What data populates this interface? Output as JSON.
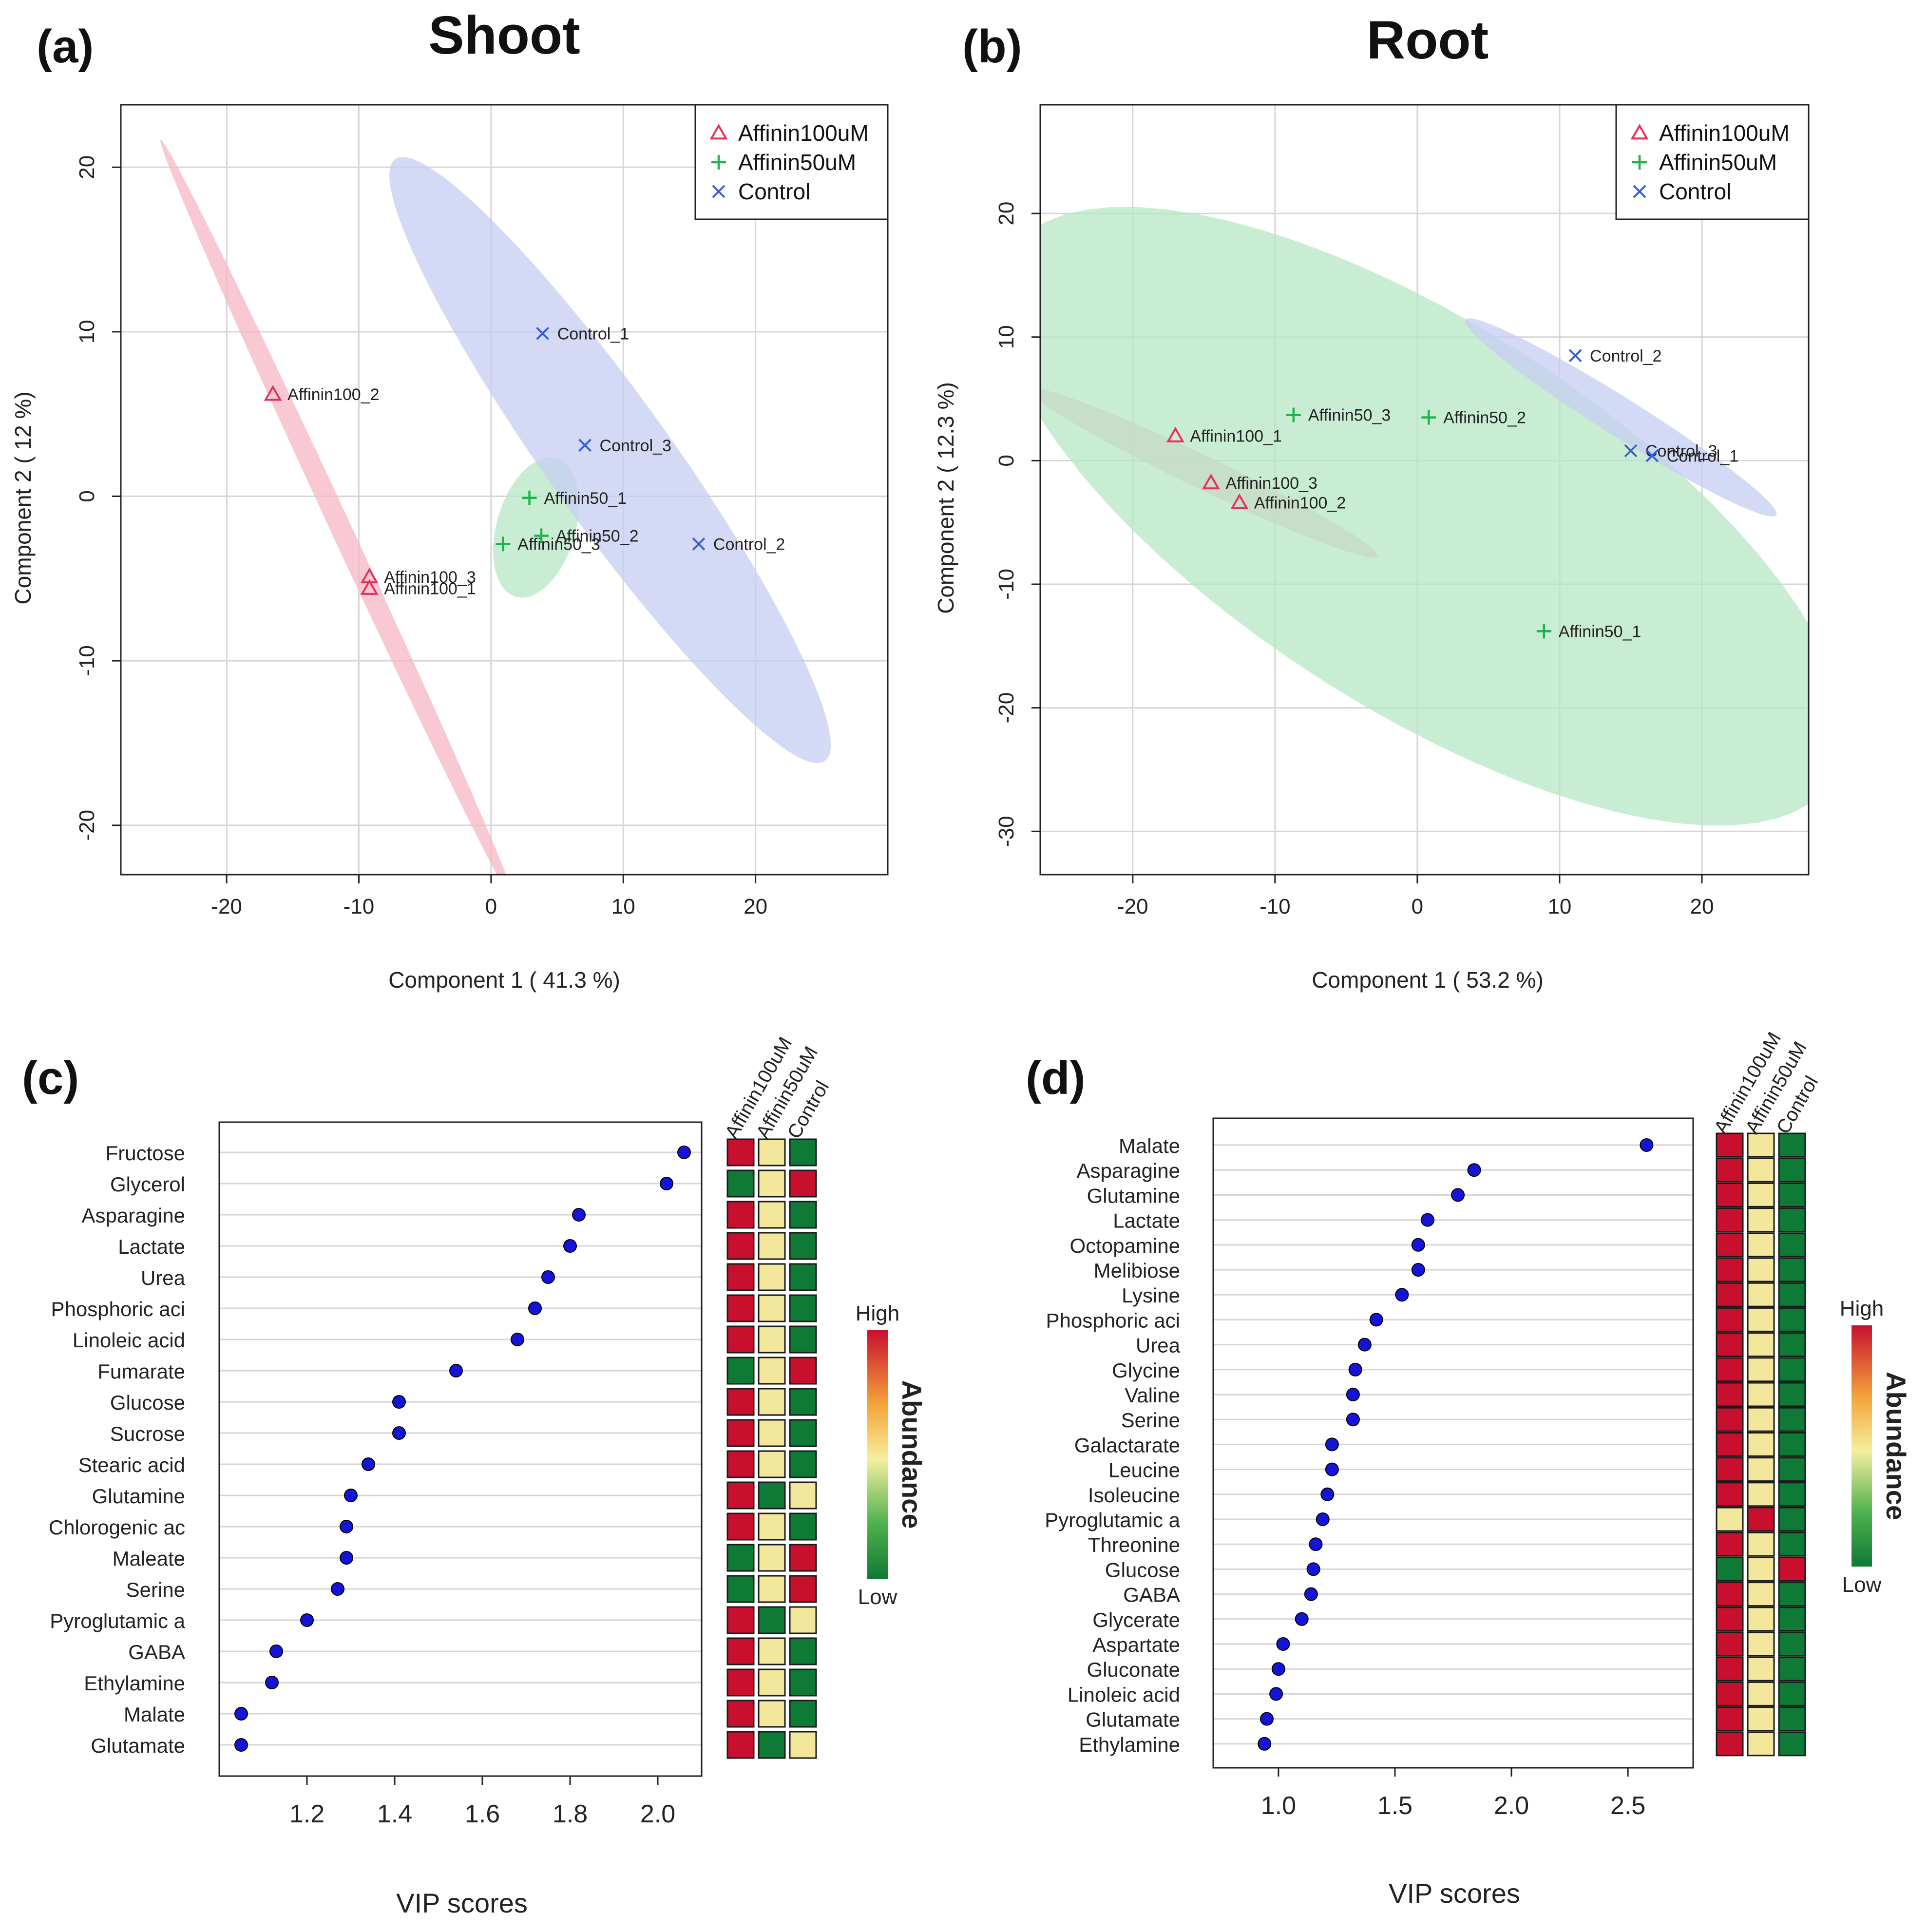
{
  "chart_data": [
    {
      "panel": "(a)",
      "type": "scatter",
      "title": "Shoot",
      "xlabel": "Component 1 ( 41.3 %)",
      "ylabel": "Component 2 ( 12 %)",
      "xlim": [
        -28,
        30
      ],
      "ylim": [
        -23,
        23.8
      ],
      "xticks": [
        -20,
        -10,
        0,
        10,
        20
      ],
      "yticks": [
        -20,
        -10,
        0,
        10,
        20
      ],
      "grid": true,
      "legend": "top-right",
      "series": [
        {
          "name": "Affinin100uM",
          "marker": "triangle",
          "color": "#e8305a",
          "ellipse_color": "#f6b5c4",
          "ellipse": {
            "cx": -11.5,
            "cy": -1.7,
            "a": 27,
            "b": 0.75,
            "angle_deg": -60
          },
          "points": [
            {
              "label": "Affinin100_2",
              "x": -16.5,
              "y": 6.2
            },
            {
              "label": "Affinin100_3",
              "x": -9.2,
              "y": -4.9
            },
            {
              "label": "Affinin100_1",
              "x": -9.2,
              "y": -5.6
            }
          ]
        },
        {
          "name": "Affinin50uM",
          "marker": "plus",
          "color": "#1db34b",
          "ellipse_color": "#b7e7c4",
          "ellipse": {
            "cx": 3.4,
            "cy": -1.9,
            "a": 4.5,
            "b": 2.9,
            "angle_deg": 65
          },
          "points": [
            {
              "label": "Affinin50_1",
              "x": 2.9,
              "y": -0.1
            },
            {
              "label": "Affinin50_3",
              "x": 0.9,
              "y": -2.9
            },
            {
              "label": "Affinin50_2",
              "x": 3.8,
              "y": -2.4
            }
          ]
        },
        {
          "name": "Control",
          "marker": "x",
          "color": "#3a5ed6",
          "ellipse_color": "#c5cdf3",
          "ellipse": {
            "cx": 9.0,
            "cy": 2.2,
            "a": 24.5,
            "b": 4.3,
            "angle_deg": -48
          },
          "points": [
            {
              "label": "Control_1",
              "x": 3.9,
              "y": 9.9
            },
            {
              "label": "Control_3",
              "x": 7.1,
              "y": 3.1
            },
            {
              "label": "Control_2",
              "x": 15.7,
              "y": -2.9
            }
          ]
        }
      ]
    },
    {
      "panel": "(b)",
      "type": "scatter",
      "title": "Root",
      "xlabel": "Component 1 ( 53.2 %)",
      "ylabel": "Component 2 ( 12.3 %)",
      "xlim": [
        -26.5,
        27.5
      ],
      "ylim": [
        -33.5,
        28.8
      ],
      "xticks": [
        -20,
        -10,
        0,
        10,
        20
      ],
      "yticks": [
        -30,
        -20,
        -10,
        0,
        10,
        20
      ],
      "grid": true,
      "legend": "top-right",
      "series": [
        {
          "name": "Affinin100uM",
          "marker": "triangle",
          "color": "#e8305a",
          "ellipse_color": "#f6b5c4",
          "ellipse": {
            "cx": -15.0,
            "cy": -1.0,
            "a": 14.0,
            "b": 1.3,
            "angle_deg": -29
          },
          "points": [
            {
              "label": "Affinin100_1",
              "x": -17.0,
              "y": 2.0
            },
            {
              "label": "Affinin100_3",
              "x": -14.5,
              "y": -1.8
            },
            {
              "label": "Affinin100_2",
              "x": -12.5,
              "y": -3.4
            }
          ]
        },
        {
          "name": "Affinin50uM",
          "marker": "plus",
          "color": "#1db34b",
          "ellipse_color": "#b7e7c4",
          "ellipse": {
            "cx": 0.3,
            "cy": -4.5,
            "a": 36.0,
            "b": 14.8,
            "angle_deg": -38
          },
          "points": [
            {
              "label": "Affinin50_3",
              "x": -8.7,
              "y": 3.7
            },
            {
              "label": "Affinin50_2",
              "x": 0.8,
              "y": 3.5
            },
            {
              "label": "Affinin50_1",
              "x": 8.9,
              "y": -13.8
            }
          ]
        },
        {
          "name": "Control",
          "marker": "x",
          "color": "#3a5ed6",
          "ellipse_color": "#c5cdf3",
          "ellipse": {
            "cx": 14.3,
            "cy": 3.5,
            "a": 13.5,
            "b": 1.5,
            "angle_deg": -36
          },
          "points": [
            {
              "label": "Control_2",
              "x": 11.1,
              "y": 8.5
            },
            {
              "label": "Control_3",
              "x": 15.0,
              "y": 0.8
            },
            {
              "label": "Control_1",
              "x": 16.5,
              "y": 0.4
            }
          ]
        }
      ]
    },
    {
      "panel": "(c)",
      "type": "scatter",
      "xlabel": "VIP scores",
      "xlim": [
        1.0,
        2.1
      ],
      "xticks": [
        1.2,
        1.4,
        1.6,
        1.8,
        2.0
      ],
      "tick_labels": [
        "1.2",
        "1.4",
        "1.6",
        "1.8",
        "2.0"
      ],
      "categories": [
        "Fructose",
        "Glycerol",
        "Asparagine",
        "Lactate",
        "Urea",
        "Phosphoric aci",
        "Linoleic acid",
        "Fumarate",
        "Glucose",
        "Sucrose",
        "Stearic acid",
        "Glutamine",
        "Chlorogenic ac",
        "Maleate",
        "Serine",
        "Pyroglutamic a",
        "GABA",
        "Ethylamine",
        "Malate",
        "Glutamate"
      ],
      "values": [
        2.06,
        2.02,
        1.82,
        1.8,
        1.75,
        1.72,
        1.68,
        1.54,
        1.41,
        1.41,
        1.34,
        1.3,
        1.29,
        1.29,
        1.27,
        1.2,
        1.13,
        1.12,
        1.05,
        1.05
      ],
      "heatmap": {
        "columns": [
          "Affinin100uM",
          "Affinin50uM",
          "Control"
        ],
        "levels": [
          [
            "high",
            "mid",
            "low"
          ],
          [
            "low",
            "mid",
            "high"
          ],
          [
            "high",
            "mid",
            "low"
          ],
          [
            "high",
            "mid",
            "low"
          ],
          [
            "high",
            "mid",
            "low"
          ],
          [
            "high",
            "mid",
            "low"
          ],
          [
            "high",
            "mid",
            "low"
          ],
          [
            "low",
            "mid",
            "high"
          ],
          [
            "high",
            "mid",
            "low"
          ],
          [
            "high",
            "mid",
            "low"
          ],
          [
            "high",
            "mid",
            "low"
          ],
          [
            "high",
            "low",
            "mid"
          ],
          [
            "high",
            "mid",
            "low"
          ],
          [
            "low",
            "mid",
            "high"
          ],
          [
            "low",
            "mid",
            "high"
          ],
          [
            "high",
            "low",
            "mid"
          ],
          [
            "high",
            "mid",
            "low"
          ],
          [
            "high",
            "mid",
            "low"
          ],
          [
            "high",
            "mid",
            "low"
          ],
          [
            "high",
            "low",
            "mid"
          ]
        ]
      },
      "colorbar": {
        "high_label": "High",
        "low_label": "Low",
        "title": "Abundance"
      }
    },
    {
      "panel": "(d)",
      "type": "scatter",
      "xlabel": "VIP scores",
      "xlim": [
        0.72,
        2.78
      ],
      "xticks": [
        1.0,
        1.5,
        2.0,
        2.5
      ],
      "tick_labels": [
        "1.0",
        "1.5",
        "2.0",
        "2.5"
      ],
      "categories": [
        "Malate",
        "Asparagine",
        "Glutamine",
        "Lactate",
        "Octopamine",
        "Melibiose",
        "Lysine",
        "Phosphoric aci",
        "Urea",
        "Glycine",
        "Valine",
        "Serine",
        "Galactarate",
        "Leucine",
        "Isoleucine",
        "Pyroglutamic a",
        "Threonine",
        "Glucose",
        "GABA",
        "Glycerate",
        "Aspartate",
        "Gluconate",
        "Linoleic acid",
        "Glutamate",
        "Ethylamine"
      ],
      "values": [
        2.58,
        1.84,
        1.77,
        1.64,
        1.6,
        1.6,
        1.53,
        1.42,
        1.37,
        1.33,
        1.32,
        1.32,
        1.23,
        1.23,
        1.21,
        1.19,
        1.16,
        1.15,
        1.14,
        1.1,
        1.02,
        1.0,
        0.99,
        0.95,
        0.94
      ],
      "heatmap": {
        "columns": [
          "Affinin100uM",
          "Affinin50uM",
          "Control"
        ],
        "levels": [
          [
            "high",
            "mid",
            "low"
          ],
          [
            "high",
            "mid",
            "low"
          ],
          [
            "high",
            "mid",
            "low"
          ],
          [
            "high",
            "mid",
            "low"
          ],
          [
            "high",
            "mid",
            "low"
          ],
          [
            "high",
            "mid",
            "low"
          ],
          [
            "high",
            "mid",
            "low"
          ],
          [
            "high",
            "mid",
            "low"
          ],
          [
            "high",
            "mid",
            "low"
          ],
          [
            "high",
            "mid",
            "low"
          ],
          [
            "high",
            "mid",
            "low"
          ],
          [
            "high",
            "mid",
            "low"
          ],
          [
            "high",
            "mid",
            "low"
          ],
          [
            "high",
            "mid",
            "low"
          ],
          [
            "high",
            "mid",
            "low"
          ],
          [
            "mid",
            "high",
            "low"
          ],
          [
            "high",
            "mid",
            "low"
          ],
          [
            "low",
            "mid",
            "high"
          ],
          [
            "high",
            "mid",
            "low"
          ],
          [
            "high",
            "mid",
            "low"
          ],
          [
            "high",
            "mid",
            "low"
          ],
          [
            "high",
            "mid",
            "low"
          ],
          [
            "high",
            "mid",
            "low"
          ],
          [
            "high",
            "mid",
            "low"
          ],
          [
            "high",
            "mid",
            "low"
          ]
        ]
      },
      "colorbar": {
        "high_label": "High",
        "low_label": "Low",
        "title": "Abundance"
      }
    }
  ],
  "panel_labels": [
    "(a)",
    "(b)",
    "(c)",
    "(d)"
  ],
  "colors": {
    "high": "#c8102e",
    "mid": "#f2e79a",
    "low": "#0f7a36",
    "dot": "#1414d8",
    "grid": "#d6d6d6"
  }
}
